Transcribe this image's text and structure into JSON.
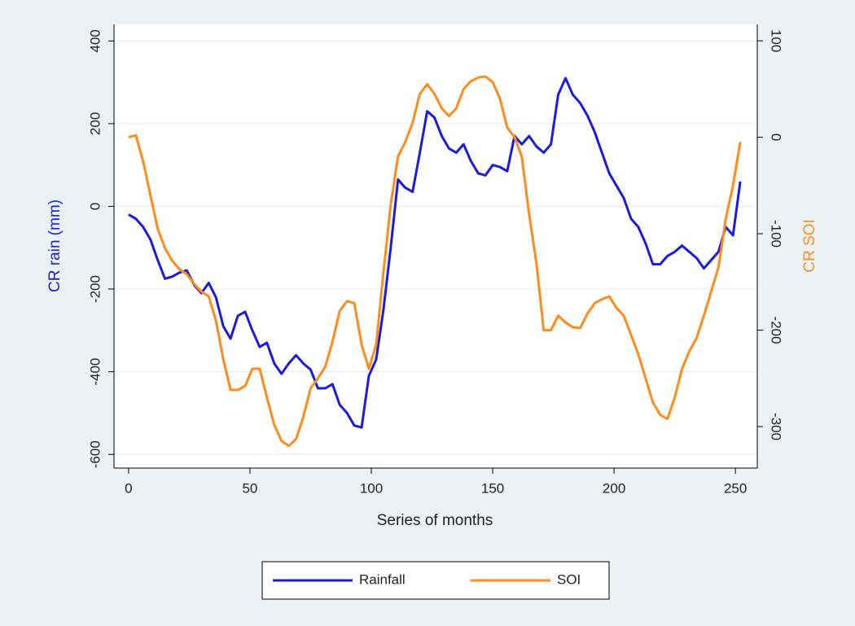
{
  "chart_data": {
    "type": "line",
    "x_label": "Series of months",
    "y_label": "CR rain (mm)",
    "y2_label": "CR SOI",
    "x": [
      0,
      3,
      6,
      9,
      12,
      15,
      18,
      21,
      24,
      27,
      30,
      33,
      36,
      39,
      42,
      45,
      48,
      51,
      54,
      57,
      60,
      63,
      66,
      69,
      72,
      75,
      78,
      81,
      84,
      87,
      90,
      93,
      96,
      99,
      102,
      105,
      108,
      111,
      114,
      117,
      120,
      123,
      126,
      129,
      132,
      135,
      138,
      141,
      144,
      147,
      150,
      153,
      156,
      159,
      162,
      165,
      168,
      171,
      174,
      177,
      180,
      183,
      186,
      189,
      192,
      195,
      198,
      201,
      204,
      207,
      210,
      213,
      216,
      219,
      222,
      225,
      228,
      231,
      234,
      237,
      240,
      243,
      246,
      249,
      252
    ],
    "series": [
      {
        "name": "Rainfall",
        "color": "#1a1ae6",
        "axis": "y",
        "values": [
          -20,
          -30,
          -50,
          -80,
          -130,
          -175,
          -170,
          -160,
          -155,
          -190,
          -210,
          -185,
          -220,
          -290,
          -320,
          -265,
          -255,
          -300,
          -340,
          -330,
          -380,
          -405,
          -380,
          -360,
          -380,
          -395,
          -440,
          -440,
          -430,
          -480,
          -500,
          -530,
          -535,
          -410,
          -370,
          -250,
          -100,
          65,
          45,
          35,
          130,
          230,
          215,
          170,
          140,
          130,
          150,
          110,
          80,
          75,
          100,
          95,
          85,
          170,
          150,
          170,
          145,
          130,
          150,
          270,
          310,
          270,
          250,
          220,
          180,
          130,
          80,
          50,
          20,
          -30,
          -50,
          -90,
          -140,
          -140,
          -120,
          -110,
          -95,
          -110,
          -125,
          -150,
          -130,
          -110,
          -50,
          -70,
          60
        ]
      },
      {
        "name": "SOI",
        "color": "#ff8c1a",
        "axis": "y2",
        "values": [
          0,
          2,
          -25,
          -60,
          -95,
          -115,
          -128,
          -137,
          -142,
          -152,
          -160,
          -165,
          -190,
          -230,
          -262,
          -262,
          -258,
          -240,
          -240,
          -270,
          -298,
          -315,
          -320,
          -313,
          -290,
          -260,
          -250,
          -238,
          -212,
          -180,
          -170,
          -172,
          -215,
          -240,
          -215,
          -140,
          -70,
          -20,
          -5,
          15,
          45,
          55,
          45,
          30,
          22,
          30,
          50,
          58,
          62,
          63,
          57,
          40,
          10,
          0,
          -20,
          -80,
          -130,
          -200,
          -200,
          -185,
          -192,
          -197,
          -198,
          -183,
          -172,
          -168,
          -165,
          -177,
          -185,
          -205,
          -225,
          -250,
          -275,
          -288,
          -292,
          -270,
          -240,
          -222,
          -208,
          -185,
          -160,
          -135,
          -85,
          -50,
          -5
        ]
      }
    ],
    "xlim": [
      -6,
      259
    ],
    "xticks": [
      0,
      50,
      100,
      150,
      200,
      250
    ],
    "ylim": [
      -633,
      440
    ],
    "yticks": [
      -600,
      -400,
      -200,
      0,
      200,
      400
    ],
    "y2lim": [
      -343,
      117
    ],
    "y2ticks": [
      -300,
      -200,
      -100,
      0,
      100
    ],
    "grid": true,
    "legend": "bottom"
  }
}
